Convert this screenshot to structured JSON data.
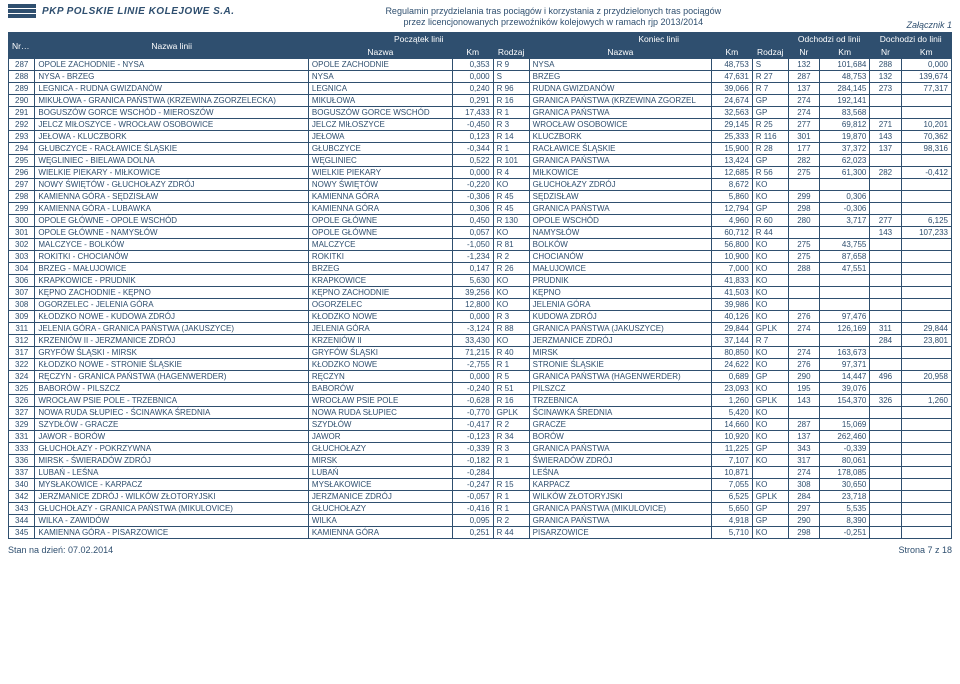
{
  "colors": {
    "primary": "#2f4f6f",
    "bg": "#ffffff",
    "header_text": "#ffffff"
  },
  "logo": {
    "acronym": "PKP",
    "full": "POLSKIE LINIE KOLEJOWE S.A."
  },
  "title": {
    "line1": "Regulamin przydzielania tras pociągów i korzystania z przydzielonych tras pociągów",
    "line2": "przez licencjonowanych przewoźników kolejowych w ramach rjp 2013/2014"
  },
  "attachment": "Załącznik 1",
  "footer": {
    "left": "Stan na dzień: 07.02.2014",
    "right": "Strona 7 z 18"
  },
  "table": {
    "headers": {
      "nr_linii": "Nr linii",
      "nazwa_linii": "Nazwa linii",
      "poczatek": "Początek linii",
      "koniec": "Koniec linii",
      "odchodzi": "Odchodzi od linii",
      "dochodzi": "Dochodzi do linii",
      "nazwa": "Nazwa",
      "km": "Km",
      "rodzaj": "Rodzaj",
      "nr": "Nr"
    },
    "columns_align": [
      "c",
      "l",
      "l",
      "r",
      "l",
      "l",
      "r",
      "l",
      "c",
      "r",
      "c",
      "r"
    ],
    "rows": [
      [
        "287",
        "OPOLE ZACHODNIE - NYSA",
        "OPOLE ZACHODNIE",
        "0,353",
        "R 9",
        "NYSA",
        "48,753",
        "S",
        "132",
        "101,684",
        "288",
        "0,000"
      ],
      [
        "288",
        "NYSA - BRZEG",
        "NYSA",
        "0,000",
        "S",
        "BRZEG",
        "47,631",
        "R 27",
        "287",
        "48,753",
        "132",
        "139,674"
      ],
      [
        "289",
        "LEGNICA - RUDNA GWIZDANÓW",
        "LEGNICA",
        "0,240",
        "R 96",
        "RUDNA GWIZDANÓW",
        "39,066",
        "R 7",
        "137",
        "284,145",
        "273",
        "77,317"
      ],
      [
        "290",
        "MIKUŁOWA - GRANICA PAŃSTWA (KRZEWINA ZGORZELECKA)",
        "MIKUŁOWA",
        "0,291",
        "R 16",
        "GRANICA PAŃSTWA (KRZEWINA ZGORZEL",
        "24,674",
        "GP",
        "274",
        "192,141",
        "",
        ""
      ],
      [
        "291",
        "BOGUSZÓW GORCE WSCHÓD - MIEROSZÓW",
        "BOGUSZÓW GORCE WSCHÓD",
        "17,433",
        "R 1",
        "GRANICA PAŃSTWA",
        "32,563",
        "GP",
        "274",
        "83,568",
        "",
        ""
      ],
      [
        "292",
        "JELCZ MIŁOSZYCE - WROCŁAW OSOBOWICE",
        "JELCZ MIŁOSZYCE",
        "-0,450",
        "R 3",
        "WROCŁAW OSOBOWICE",
        "29,145",
        "R 25",
        "277",
        "69,812",
        "271",
        "10,201"
      ],
      [
        "293",
        "JEŁOWA - KLUCZBORK",
        "JEŁOWA",
        "0,123",
        "R 14",
        "KLUCZBORK",
        "25,333",
        "R 116",
        "301",
        "19,870",
        "143",
        "70,362"
      ],
      [
        "294",
        "GŁUBCZYCE - RACŁAWICE ŚLĄSKIE",
        "GŁUBCZYCE",
        "-0,344",
        "R 1",
        "RACŁAWICE ŚLĄSKIE",
        "15,900",
        "R 28",
        "177",
        "37,372",
        "137",
        "98,316"
      ],
      [
        "295",
        "WĘGLINIEC - BIELAWA DOLNA",
        "WĘGLINIEC",
        "0,522",
        "R 101",
        "GRANICA PAŃSTWA",
        "13,424",
        "GP",
        "282",
        "62,023",
        "",
        ""
      ],
      [
        "296",
        "WIELKIE PIEKARY - MIŁKOWICE",
        "WIELKIE PIEKARY",
        "0,000",
        "R 4",
        "MIŁKOWICE",
        "12,685",
        "R 56",
        "275",
        "61,300",
        "282",
        "-0,412"
      ],
      [
        "297",
        "NOWY ŚWIĘTÓW - GŁUCHOŁAZY ZDRÓJ",
        "NOWY ŚWIĘTÓW",
        "-0,220",
        "KO",
        "GŁUCHOŁAZY ZDRÓJ",
        "8,672",
        "KO",
        "",
        "",
        "",
        ""
      ],
      [
        "298",
        "KAMIENNA GÓRA - SĘDZISŁAW",
        "KAMIENNA GÓRA",
        "-0,306",
        "R 45",
        "SĘDZISŁAW",
        "5,860",
        "KO",
        "299",
        "0,306",
        "",
        ""
      ],
      [
        "299",
        "KAMIENNA GÓRA - LUBAWKA",
        "KAMIENNA GÓRA",
        "0,306",
        "R 45",
        "GRANICA PAŃSTWA",
        "12,794",
        "GP",
        "298",
        "-0,306",
        "",
        ""
      ],
      [
        "300",
        "OPOLE GŁÓWNE - OPOLE WSCHÓD",
        "OPOLE GŁÓWNE",
        "0,450",
        "R 130",
        "OPOLE WSCHÓD",
        "4,960",
        "R 60",
        "280",
        "3,717",
        "277",
        "6,125"
      ],
      [
        "301",
        "OPOLE GŁÓWNE - NAMYSŁÓW",
        "OPOLE GŁÓWNE",
        "0,057",
        "KO",
        "NAMYSŁÓW",
        "60,712",
        "R 44",
        "",
        "",
        "143",
        "107,233"
      ],
      [
        "302",
        "MALCZYCE - BOLKÓW",
        "MALCZYCE",
        "-1,050",
        "R 81",
        "BOLKÓW",
        "56,800",
        "KO",
        "275",
        "43,755",
        "",
        ""
      ],
      [
        "303",
        "ROKITKI - CHOCIANÓW",
        "ROKITKI",
        "-1,234",
        "R 2",
        "CHOCIANÓW",
        "10,900",
        "KO",
        "275",
        "87,658",
        "",
        ""
      ],
      [
        "304",
        "BRZEG - MAŁUJOWICE",
        "BRZEG",
        "0,147",
        "R 26",
        "MAŁUJOWICE",
        "7,000",
        "KO",
        "288",
        "47,551",
        "",
        ""
      ],
      [
        "306",
        "KRAPKOWICE - PRUDNIK",
        "KRAPKOWICE",
        "5,630",
        "KO",
        "PRUDNIK",
        "41,833",
        "KO",
        "",
        "",
        "",
        ""
      ],
      [
        "307",
        "KĘPNO ZACHODNIE - KĘPNO",
        "KĘPNO ZACHODNIE",
        "39,256",
        "KO",
        "KĘPNO",
        "41,503",
        "KO",
        "",
        "",
        "",
        ""
      ],
      [
        "308",
        "OGORZELEC - JELENIA GÓRA",
        "OGORZELEC",
        "12,800",
        "KO",
        "JELENIA GÓRA",
        "39,986",
        "KO",
        "",
        "",
        "",
        ""
      ],
      [
        "309",
        "KŁODZKO NOWE - KUDOWA ZDRÓJ",
        "KŁODZKO NOWE",
        "0,000",
        "R 3",
        "KUDOWA ZDRÓJ",
        "40,126",
        "KO",
        "276",
        "97,476",
        "",
        ""
      ],
      [
        "311",
        "JELENIA GÓRA - GRANICA PAŃSTWA (JAKUSZYCE)",
        "JELENIA GÓRA",
        "-3,124",
        "R 88",
        "GRANICA PAŃSTWA (JAKUSZYCE)",
        "29,844",
        "GPLK",
        "274",
        "126,169",
        "311",
        "29,844"
      ],
      [
        "312",
        "KRZENIÓW II - JERZMANICE ZDRÓJ",
        "KRZENIÓW II",
        "33,430",
        "KO",
        "JERZMANICE ZDRÓJ",
        "37,144",
        "R 7",
        "",
        "",
        "284",
        "23,801"
      ],
      [
        "317",
        "GRYFÓW ŚLĄSKI - MIRSK",
        "GRYFÓW ŚLĄSKI",
        "71,215",
        "R 40",
        "MIRSK",
        "80,850",
        "KO",
        "274",
        "163,673",
        "",
        ""
      ],
      [
        "322",
        "KŁODZKO NOWE - STRONIE ŚLĄSKIE",
        "KŁODZKO NOWE",
        "-2,755",
        "R 1",
        "STRONIE ŚLĄSKIE",
        "24,622",
        "KO",
        "276",
        "97,371",
        "",
        ""
      ],
      [
        "324",
        "RĘCZYN - GRANICA PAŃSTWA (HAGENWERDER)",
        "RĘCZYN",
        "0,000",
        "R 5",
        "GRANICA PAŃSTWA (HAGENWERDER)",
        "0,689",
        "GP",
        "290",
        "14,447",
        "496",
        "20,958"
      ],
      [
        "325",
        "BABORÓW - PILSZCZ",
        "BABORÓW",
        "-0,240",
        "R 51",
        "PILSZCZ",
        "23,093",
        "KO",
        "195",
        "39,076",
        "",
        ""
      ],
      [
        "326",
        "WROCŁAW PSIE POLE - TRZEBNICA",
        "WROCŁAW PSIE POLE",
        "-0,628",
        "R 16",
        "TRZEBNICA",
        "1,260",
        "GPLK",
        "143",
        "154,370",
        "326",
        "1,260"
      ],
      [
        "327",
        "NOWA RUDA SŁUPIEC - ŚCINAWKA ŚREDNIA",
        "NOWA RUDA SŁUPIEC",
        "-0,770",
        "GPLK",
        "ŚCINAWKA ŚREDNIA",
        "5,420",
        "KO",
        "",
        "",
        "",
        ""
      ],
      [
        "329",
        "SZYDŁÓW - GRACZE",
        "SZYDŁÓW",
        "-0,417",
        "R 2",
        "GRACZE",
        "14,660",
        "KO",
        "287",
        "15,069",
        "",
        ""
      ],
      [
        "331",
        "JAWOR - BORÓW",
        "JAWOR",
        "-0,123",
        "R 34",
        "BORÓW",
        "10,920",
        "KO",
        "137",
        "262,460",
        "",
        ""
      ],
      [
        "333",
        "GŁUCHOŁAZY - POKRZYWNA",
        "GŁUCHOŁAZY",
        "-0,339",
        "R 3",
        "GRANICA PAŃSTWA",
        "11,225",
        "GP",
        "343",
        "-0,339",
        "",
        ""
      ],
      [
        "336",
        "MIRSK - ŚWIERADÓW ZDRÓJ",
        "MIRSK",
        "-0,182",
        "R 1",
        "ŚWIERADÓW ZDRÓJ",
        "7,107",
        "KO",
        "317",
        "80,061",
        "",
        ""
      ],
      [
        "337",
        "LUBAŃ - LEŚNA",
        "LUBAŃ",
        "-0,284",
        "",
        "LEŚNA",
        "10,871",
        "",
        "274",
        "178,085",
        "",
        ""
      ],
      [
        "340",
        "MYSŁAKOWICE - KARPACZ",
        "MYSŁAKOWICE",
        "-0,247",
        "R 15",
        "KARPACZ",
        "7,055",
        "KO",
        "308",
        "30,650",
        "",
        ""
      ],
      [
        "342",
        "JERZMANICE ZDRÓJ - WILKÓW ZŁOTORYJSKI",
        "JERZMANICE ZDRÓJ",
        "-0,057",
        "R 1",
        "WILKÓW ZŁOTORYJSKI",
        "6,525",
        "GPLK",
        "284",
        "23,718",
        "",
        ""
      ],
      [
        "343",
        "GŁUCHOŁAZY - GRANICA PAŃSTWA (MIKULOVICE)",
        "GŁUCHOŁAZY",
        "-0,416",
        "R 1",
        "GRANICA PAŃSTWA (MIKULOVICE)",
        "5,650",
        "GP",
        "297",
        "5,535",
        "",
        ""
      ],
      [
        "344",
        "WILKA - ZAWIDÓW",
        "WILKA",
        "0,095",
        "R 2",
        "GRANICA PAŃSTWA",
        "4,918",
        "GP",
        "290",
        "8,390",
        "",
        ""
      ],
      [
        "345",
        "KAMIENNA GÓRA - PISARZOWICE",
        "KAMIENNA GÓRA",
        "0,251",
        "R 44",
        "PISARZOWICE",
        "5,710",
        "KO",
        "298",
        "-0,251",
        "",
        ""
      ]
    ]
  }
}
